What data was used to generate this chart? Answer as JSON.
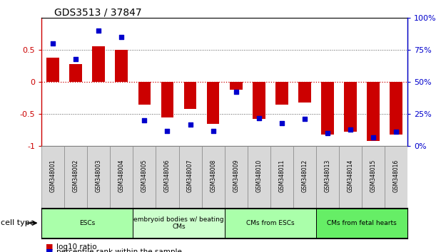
{
  "title": "GDS3513 / 37847",
  "samples": [
    "GSM348001",
    "GSM348002",
    "GSM348003",
    "GSM348004",
    "GSM348005",
    "GSM348006",
    "GSM348007",
    "GSM348008",
    "GSM348009",
    "GSM348010",
    "GSM348011",
    "GSM348012",
    "GSM348013",
    "GSM348014",
    "GSM348015",
    "GSM348016"
  ],
  "log10_ratio": [
    0.38,
    0.28,
    0.55,
    0.5,
    -0.35,
    -0.55,
    -0.42,
    -0.65,
    -0.12,
    -0.58,
    -0.35,
    -0.32,
    -0.82,
    -0.78,
    -0.92,
    -0.82
  ],
  "percentile_rank": [
    80,
    68,
    90,
    85,
    20,
    12,
    17,
    12,
    42,
    22,
    18,
    21,
    10,
    13,
    7,
    11
  ],
  "cell_type_groups": [
    {
      "label": "ESCs",
      "start": 0,
      "end": 3,
      "color": "#AAFFAA"
    },
    {
      "label": "embryoid bodies w/ beating\nCMs",
      "start": 4,
      "end": 7,
      "color": "#CCFFCC"
    },
    {
      "label": "CMs from ESCs",
      "start": 8,
      "end": 11,
      "color": "#AAFFAA"
    },
    {
      "label": "CMs from fetal hearts",
      "start": 12,
      "end": 15,
      "color": "#66EE66"
    }
  ],
  "bar_color": "#CC0000",
  "dot_color": "#0000CC",
  "ylim_left": [
    -1.0,
    1.0
  ],
  "ylim_right": [
    0,
    100
  ],
  "yticks_left": [
    -1.0,
    -0.5,
    0.0,
    0.5
  ],
  "ytick_labels_left": [
    "-1",
    "-0.5",
    "0",
    "0.5"
  ],
  "yticks_right": [
    0,
    25,
    50,
    75,
    100
  ],
  "ytick_labels_right": [
    "0%",
    "25%",
    "50%",
    "75%",
    "100%"
  ],
  "zero_line_color": "#CC0000",
  "dotted_line_color": "#555555",
  "background_color": "#ffffff",
  "cell_type_label": "cell type"
}
